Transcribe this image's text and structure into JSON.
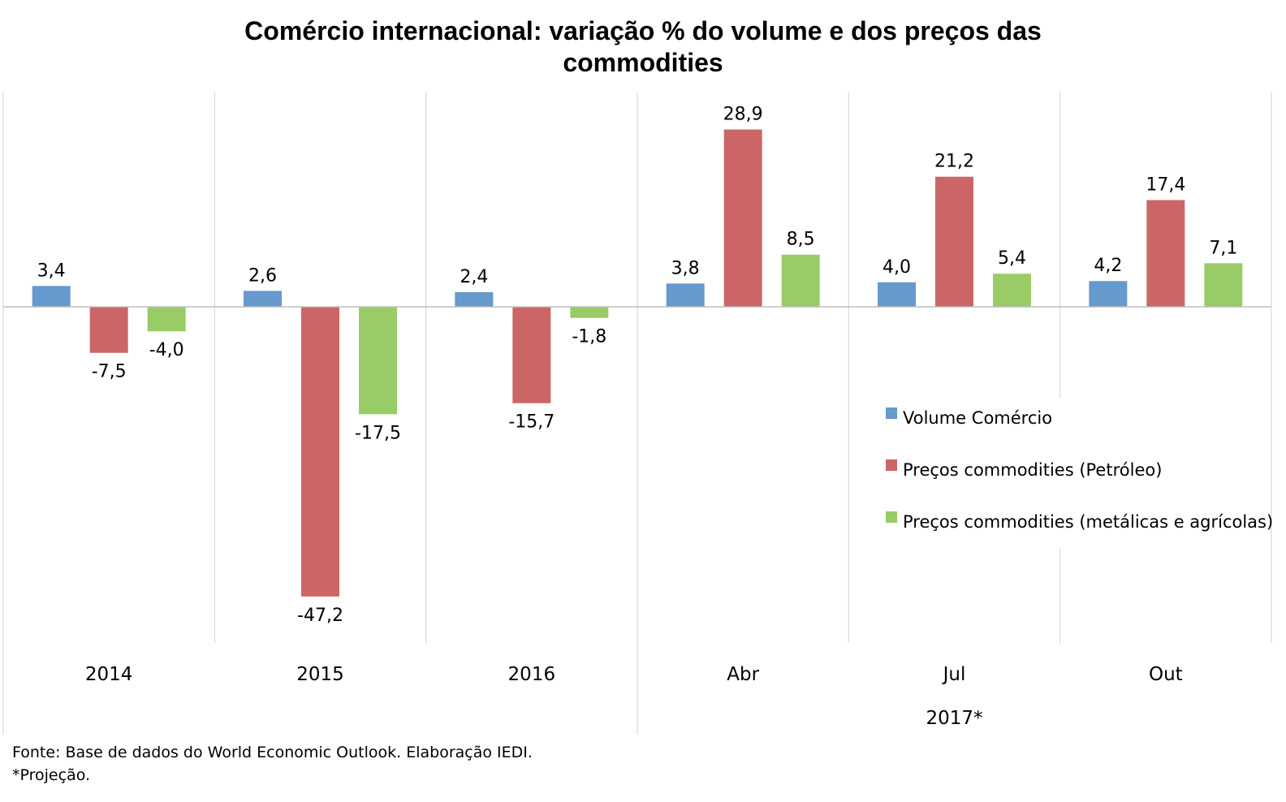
{
  "chart_data": {
    "type": "bar",
    "title_lines": [
      "Comércio internacional: variação % do volume e dos preços das",
      "commodities"
    ],
    "categories": [
      "2014",
      "2015",
      "2016",
      "Abr",
      "Jul",
      "Out"
    ],
    "group_label": "2017*",
    "series": [
      {
        "name": "Volume Comércio",
        "color": "#6699CC",
        "values": [
          3.4,
          2.6,
          2.4,
          3.8,
          4.0,
          4.2
        ],
        "labels": [
          "3,4",
          "2,6",
          "2,4",
          "3,8",
          "4,0",
          "4,2"
        ]
      },
      {
        "name": "Preços commodities (Petróleo)",
        "color": "#CC6666",
        "values": [
          -7.5,
          -47.2,
          -15.7,
          28.9,
          21.2,
          17.4
        ],
        "labels": [
          "-7,5",
          "-47,2",
          "-15,7",
          "28,9",
          "21,2",
          "17,4"
        ]
      },
      {
        "name": "Preços commodities (metálicas e agrícolas)",
        "color": "#99CC66",
        "values": [
          -4.0,
          -17.5,
          -1.8,
          8.5,
          5.4,
          7.1
        ],
        "labels": [
          "-4,0",
          "-17,5",
          "-1,8",
          "8,5",
          "5,4",
          "7,1"
        ]
      }
    ],
    "legend_position": "right",
    "grid": false
  },
  "footnotes": {
    "source": "Fonte: Base de dados do World Economic Outlook. Elaboração IEDI.",
    "note": "*Projeção."
  }
}
